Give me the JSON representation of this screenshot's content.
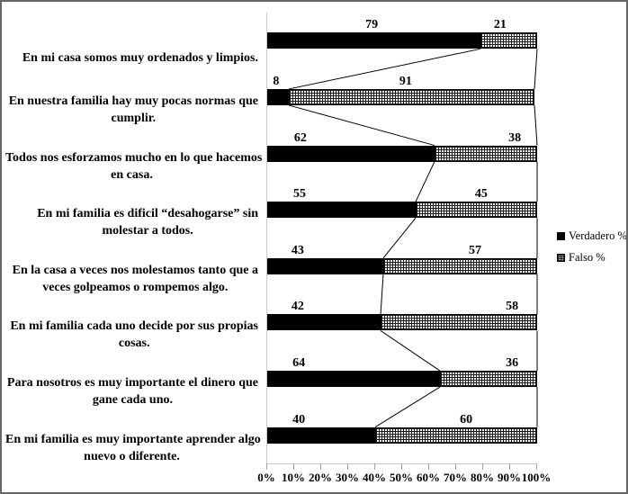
{
  "chart_data": {
    "type": "bar",
    "orientation": "horizontal-stacked-100",
    "title": "",
    "xlabel": "",
    "ylabel": "",
    "xlim": [
      0,
      100
    ],
    "grid": false,
    "series_connector_lines": true,
    "legend_position": "right-middle",
    "x_axis_ticks": [
      "0%",
      "10%",
      "20%",
      "30%",
      "40%",
      "50%",
      "60%",
      "70%",
      "80%",
      "90%",
      "100%"
    ],
    "categories": [
      {
        "lines": [
          "En mi casa somos muy ordenados y limpios."
        ]
      },
      {
        "lines": [
          "En nuestra familia hay muy pocas normas que",
          "cumplir."
        ]
      },
      {
        "lines": [
          "Todos nos esforzamos mucho en lo que hacemos",
          "en casa."
        ]
      },
      {
        "lines": [
          "En mi familia es dificil “desahogarse” sin",
          "molestar a todos."
        ]
      },
      {
        "lines": [
          "En la casa a veces nos molestamos tanto que a",
          "veces golpeamos o rompemos algo."
        ]
      },
      {
        "lines": [
          "En mi familia cada uno decide por sus propias",
          "cosas."
        ]
      },
      {
        "lines": [
          "Para nosotros es muy importante el dinero que",
          "gane cada uno."
        ]
      },
      {
        "lines": [
          "En mi familia es muy importante aprender algo",
          "nuevo o diferente."
        ]
      }
    ],
    "series": [
      {
        "name": "Verdadero %",
        "style": "solid-black",
        "values": [
          79,
          8,
          62,
          55,
          43,
          42,
          64,
          40
        ]
      },
      {
        "name": "Falso %",
        "style": "grid-pattern",
        "values": [
          21,
          91,
          38,
          45,
          57,
          58,
          36,
          60
        ]
      }
    ]
  },
  "legend": {
    "items": [
      {
        "label": "Verdadero %"
      },
      {
        "label": "Falso %"
      }
    ]
  },
  "colors": {
    "verdadero_fill": "#000000",
    "falso_pattern_line": "#1a1a1a",
    "axis_line": "#a3a3a3",
    "frame_border": "#666666",
    "background": "#ffffff"
  }
}
